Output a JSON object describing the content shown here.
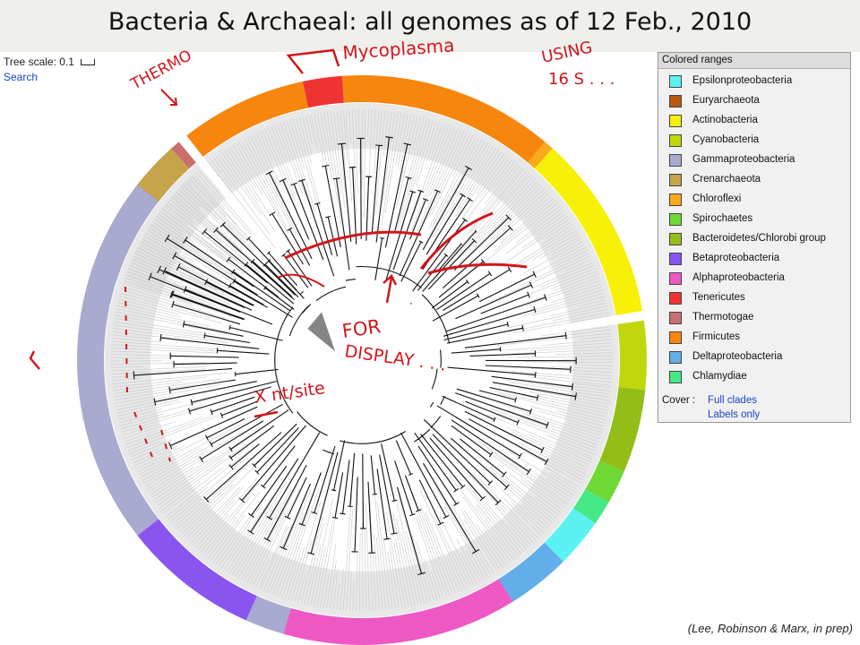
{
  "title": "Bacteria & Archaeal: all genomes as of 12 Feb., 2010",
  "tree_scale_label": "Tree scale:",
  "tree_scale_value": "0.1",
  "search_label": "Search",
  "legend": {
    "header": "Colored ranges",
    "items": [
      {
        "label": "Epsilonproteobacteria",
        "color": "#5cf2f2"
      },
      {
        "label": "Euryarchaeota",
        "color": "#b8580c"
      },
      {
        "label": "Actinobacteria",
        "color": "#f7f007"
      },
      {
        "label": "Cyanobacteria",
        "color": "#c2d60c"
      },
      {
        "label": "Gammaproteobacteria",
        "color": "#a9aad0"
      },
      {
        "label": "Crenarchaeota",
        "color": "#c6a44c"
      },
      {
        "label": "Chloroflexi",
        "color": "#f9a91b"
      },
      {
        "label": "Spirochaetes",
        "color": "#6ed834"
      },
      {
        "label": "Bacteroidetes/Chlorobi group",
        "color": "#93be18"
      },
      {
        "label": "Betaproteobacteria",
        "color": "#8a55ef"
      },
      {
        "label": "Alphaproteobacteria",
        "color": "#ee58c4"
      },
      {
        "label": "Tenericutes",
        "color": "#ee3333"
      },
      {
        "label": "Thermotogae",
        "color": "#c96f6f"
      },
      {
        "label": "Firmicutes",
        "color": "#f7860f"
      },
      {
        "label": "Deltaproteobacteria",
        "color": "#61aee8"
      },
      {
        "label": "Chlamydiae",
        "color": "#45ea86"
      }
    ],
    "cover_label": "Cover :",
    "cover_full": "Full clades",
    "cover_labels": "Labels only"
  },
  "annotations": {
    "thermo": "THERMO",
    "mycoplasma": "Mycoplasma",
    "using_line1": "USING",
    "using_line2": "16 S . . .",
    "for": "FOR",
    "display": "DISPLAY . . .",
    "xnt": "X nt/site"
  },
  "citation": "(Lee, Robinson & Marx, in prep)",
  "ring": {
    "center": [
      404,
      402
    ],
    "segments": [
      {
        "clade": "Euryarchaeota",
        "start": -72,
        "end": -44
      },
      {
        "clade": "Thermotogae",
        "start": -44,
        "end": -40
      },
      {
        "clade": "Firmicutes",
        "start": -38,
        "end": -12
      },
      {
        "clade": "Tenericutes",
        "start": -12,
        "end": -4
      },
      {
        "clade": "Firmicutes",
        "start": -4,
        "end": 40
      },
      {
        "clade": "Chloroflexi",
        "start": 40,
        "end": 42
      },
      {
        "clade": "Actinobacteria",
        "start": 42,
        "end": 80
      },
      {
        "clade": "Cyanobacteria",
        "start": 82,
        "end": 96
      },
      {
        "clade": "Bacteroidetes/Chlorobi group",
        "start": 96,
        "end": 113
      },
      {
        "clade": "Spirochaetes",
        "start": 113,
        "end": 120
      },
      {
        "clade": "Chlamydiae",
        "start": 120,
        "end": 125
      },
      {
        "clade": "Epsilonproteobacteria",
        "start": 125,
        "end": 135
      },
      {
        "clade": "Deltaproteobacteria",
        "start": 135,
        "end": 148
      },
      {
        "clade": "Alphaproteobacteria",
        "start": 148,
        "end": 196
      },
      {
        "clade": "Gammaproteobacteria",
        "start": 196,
        "end": 204
      },
      {
        "clade": "Betaproteobacteria",
        "start": 204,
        "end": 232
      },
      {
        "clade": "Gammaproteobacteria",
        "start": 232,
        "end": 308
      },
      {
        "clade": "Crenarchaeota",
        "start": 308,
        "end": 318
      }
    ]
  }
}
